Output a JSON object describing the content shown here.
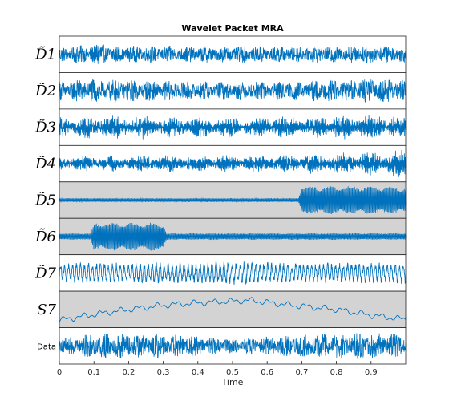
{
  "chart_data": {
    "type": "line",
    "title": "Wavelet Packet MRA",
    "xlabel": "Time",
    "xlim": [
      0,
      1
    ],
    "xticks": [
      "0",
      "0.1",
      "0.2",
      "0.3",
      "0.4",
      "0.5",
      "0.6",
      "0.7",
      "0.8",
      "0.9"
    ],
    "grid": false,
    "line_color": "#0072BD",
    "highlight_color": "#D3D3D3",
    "series": [
      {
        "name": "D̃1",
        "highlighted": false,
        "envelope": {
          "x": [
            0,
            0.05,
            0.1,
            0.12,
            0.15,
            0.3,
            0.5,
            0.7,
            0.9,
            1
          ],
          "amp": [
            0.45,
            0.55,
            0.6,
            0.9,
            0.5,
            0.5,
            0.5,
            0.5,
            0.55,
            0.5
          ]
        },
        "profile": "high"
      },
      {
        "name": "D̃2",
        "highlighted": false,
        "envelope": {
          "x": [
            0,
            0.1,
            0.3,
            0.5,
            0.7,
            0.9,
            1
          ],
          "amp": [
            0.6,
            0.75,
            0.6,
            0.55,
            0.6,
            0.75,
            0.65
          ]
        },
        "profile": "high"
      },
      {
        "name": "D̃3",
        "highlighted": false,
        "envelope": {
          "x": [
            0,
            0.1,
            0.3,
            0.5,
            0.7,
            0.9,
            1
          ],
          "amp": [
            0.65,
            0.7,
            0.65,
            0.6,
            0.65,
            0.75,
            0.7
          ]
        },
        "profile": "mid"
      },
      {
        "name": "D̃4",
        "highlighted": false,
        "envelope": {
          "x": [
            0,
            0.2,
            0.5,
            0.7,
            0.9,
            1
          ],
          "amp": [
            0.45,
            0.5,
            0.5,
            0.55,
            0.7,
            0.85
          ]
        },
        "profile": "mid"
      },
      {
        "name": "D̃5",
        "highlighted": true,
        "envelope": {
          "x": [
            0,
            0.69,
            0.7,
            0.9,
            1
          ],
          "amp": [
            0.12,
            0.12,
            0.85,
            0.85,
            0.8
          ]
        },
        "profile": "tone"
      },
      {
        "name": "D̃6",
        "highlighted": true,
        "envelope": {
          "x": [
            0,
            0.09,
            0.1,
            0.3,
            0.31,
            1
          ],
          "amp": [
            0.2,
            0.2,
            0.85,
            0.85,
            0.2,
            0.2
          ]
        },
        "profile": "tone"
      },
      {
        "name": "D̃7",
        "highlighted": false,
        "envelope": {
          "x": [
            0,
            0.3,
            0.5,
            0.7,
            1
          ],
          "amp": [
            0.55,
            0.6,
            0.65,
            0.55,
            0.6
          ]
        },
        "profile": "low"
      },
      {
        "name": "S7",
        "highlighted": true,
        "envelope": {
          "x": [
            0,
            0.3,
            0.6,
            1
          ],
          "amp": [
            0.2,
            0.2,
            0.2,
            0.2
          ]
        },
        "profile": "trend",
        "trend": {
          "x": [
            0,
            0.1,
            0.2,
            0.3,
            0.4,
            0.5,
            0.55,
            0.65,
            0.8,
            0.9,
            1
          ],
          "y": [
            -0.65,
            -0.3,
            0.0,
            0.25,
            0.4,
            0.5,
            0.55,
            0.3,
            0.0,
            -0.35,
            -0.6
          ]
        }
      },
      {
        "name": "Data",
        "highlighted": false,
        "envelope": {
          "x": [
            0,
            0.1,
            0.3,
            0.5,
            0.7,
            0.9,
            1
          ],
          "amp": [
            0.45,
            0.8,
            0.75,
            0.45,
            0.7,
            0.85,
            0.7
          ]
        },
        "profile": "high"
      }
    ]
  }
}
